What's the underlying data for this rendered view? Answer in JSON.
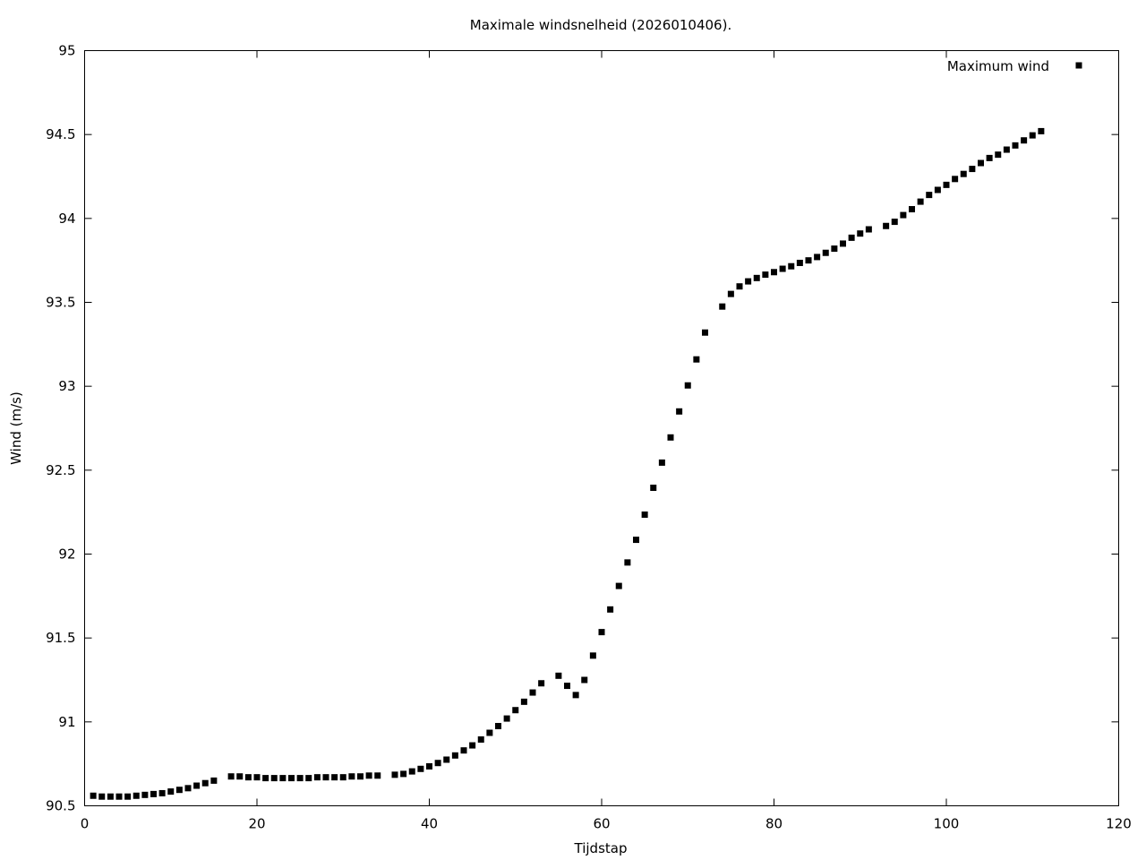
{
  "chart_data": {
    "type": "scatter",
    "title": "Maximale windsnelheid (2026010406).",
    "xlabel": "Tijdstap",
    "ylabel": "Wind (m/s)",
    "xlim": [
      0,
      120
    ],
    "ylim": [
      90.5,
      95
    ],
    "xticks": [
      "0",
      "20",
      "40",
      "60",
      "80",
      "100",
      "120"
    ],
    "yticks": [
      "90.5",
      "91",
      "91.5",
      "92",
      "92.5",
      "93",
      "93.5",
      "94",
      "94.5",
      "95"
    ],
    "xtick_values": [
      0,
      20,
      40,
      60,
      80,
      100,
      120
    ],
    "ytick_values": [
      90.5,
      91,
      91.5,
      92,
      92.5,
      93,
      93.5,
      94,
      94.5,
      95
    ],
    "grid": false,
    "legend_position": "top-right",
    "marker_color": "#000000",
    "series": [
      {
        "name": "Maximum wind",
        "x": [
          1,
          2,
          3,
          4,
          5,
          6,
          7,
          8,
          9,
          10,
          11,
          12,
          13,
          14,
          15,
          17,
          18,
          19,
          20,
          21,
          22,
          23,
          24,
          25,
          26,
          27,
          28,
          29,
          30,
          31,
          32,
          33,
          34,
          36,
          37,
          38,
          39,
          40,
          41,
          42,
          43,
          44,
          45,
          46,
          47,
          48,
          49,
          50,
          51,
          52,
          53,
          55,
          56,
          57,
          58,
          59,
          60,
          61,
          62,
          63,
          64,
          65,
          66,
          67,
          68,
          69,
          70,
          71,
          72,
          74,
          75,
          76,
          77,
          78,
          79,
          80,
          81,
          82,
          83,
          84,
          85,
          86,
          87,
          88,
          89,
          90,
          91,
          93,
          94,
          95,
          96,
          97,
          98,
          99,
          100,
          101,
          102,
          103,
          104,
          105,
          106,
          107,
          108,
          109,
          110,
          111
        ],
        "y": [
          90.56,
          90.555,
          90.555,
          90.555,
          90.555,
          90.56,
          90.565,
          90.57,
          90.575,
          90.585,
          90.595,
          90.605,
          90.62,
          90.635,
          90.65,
          90.675,
          90.675,
          90.67,
          90.67,
          90.665,
          90.665,
          90.665,
          90.665,
          90.665,
          90.665,
          90.67,
          90.67,
          90.67,
          90.67,
          90.675,
          90.675,
          90.68,
          90.68,
          90.685,
          90.69,
          90.705,
          90.72,
          90.735,
          90.755,
          90.775,
          90.8,
          90.83,
          90.86,
          90.895,
          90.935,
          90.975,
          91.02,
          91.07,
          91.12,
          91.175,
          91.23,
          91.275,
          91.215,
          91.16,
          91.25,
          91.395,
          91.535,
          91.67,
          91.81,
          91.95,
          92.085,
          92.235,
          92.395,
          92.545,
          92.695,
          92.85,
          93.005,
          93.16,
          93.32,
          93.475,
          93.55,
          93.595,
          93.625,
          93.645,
          93.665,
          93.68,
          93.7,
          93.715,
          93.735,
          93.75,
          93.77,
          93.795,
          93.82,
          93.85,
          93.885,
          93.91,
          93.935,
          93.955,
          93.98,
          94.02,
          94.055,
          94.1,
          94.14,
          94.17,
          94.2,
          94.235,
          94.265,
          94.295,
          94.33,
          94.36,
          94.38,
          94.41,
          94.435,
          94.465,
          94.495,
          94.52
        ]
      }
    ]
  }
}
